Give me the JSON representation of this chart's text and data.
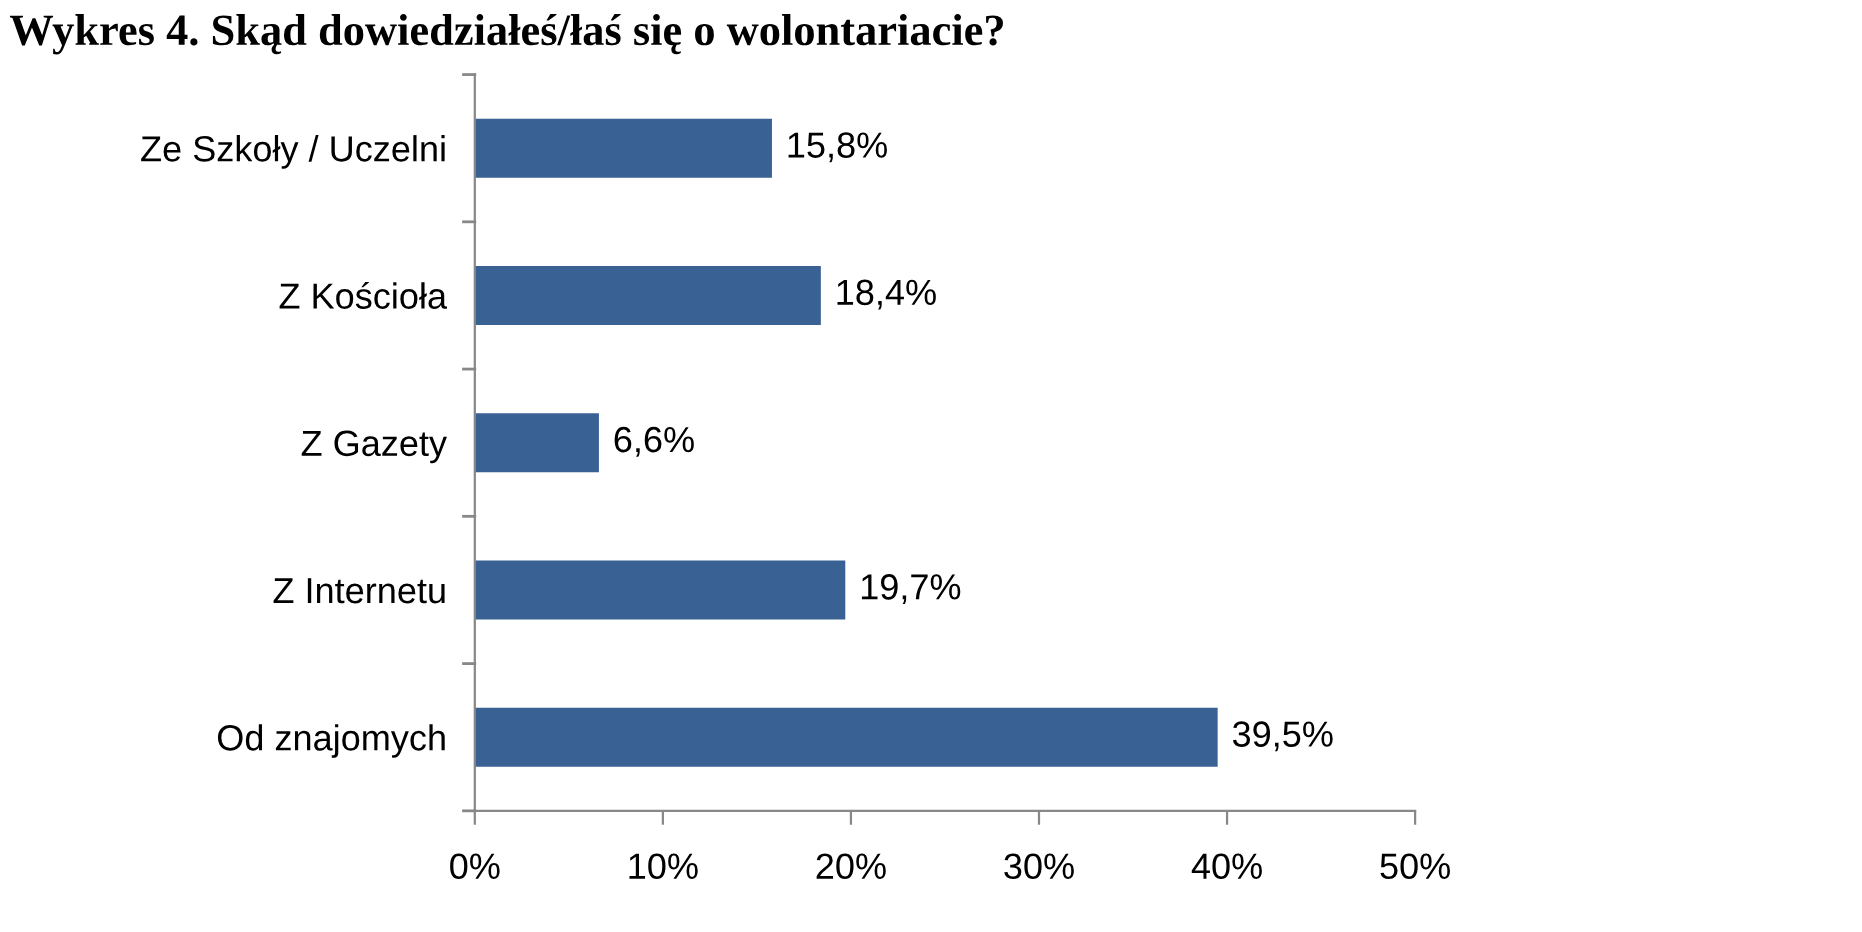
{
  "chart_data": {
    "type": "bar",
    "orientation": "horizontal",
    "title": "Wykres 4. Skąd dowiedziałeś/łaś się o wolontariacie?",
    "categories": [
      "Ze Szkoły / Uczelni",
      "Z Kościoła",
      "Z Gazety",
      "Z Internetu",
      "Od znajomych"
    ],
    "values": [
      15.8,
      18.4,
      6.6,
      19.7,
      39.5
    ],
    "value_labels": [
      "15,8%",
      "18,4%",
      "6,6%",
      "19,7%",
      "39,5%"
    ],
    "color": "#3a6193",
    "xlim": [
      0,
      50
    ],
    "xticks": [
      {
        "value": 0,
        "label": "0%"
      },
      {
        "value": 10,
        "label": "10%"
      },
      {
        "value": 20,
        "label": "20%"
      },
      {
        "value": 30,
        "label": "30%"
      },
      {
        "value": 40,
        "label": "40%"
      },
      {
        "value": 50,
        "label": "50%"
      }
    ],
    "grid": false,
    "legend": false
  }
}
